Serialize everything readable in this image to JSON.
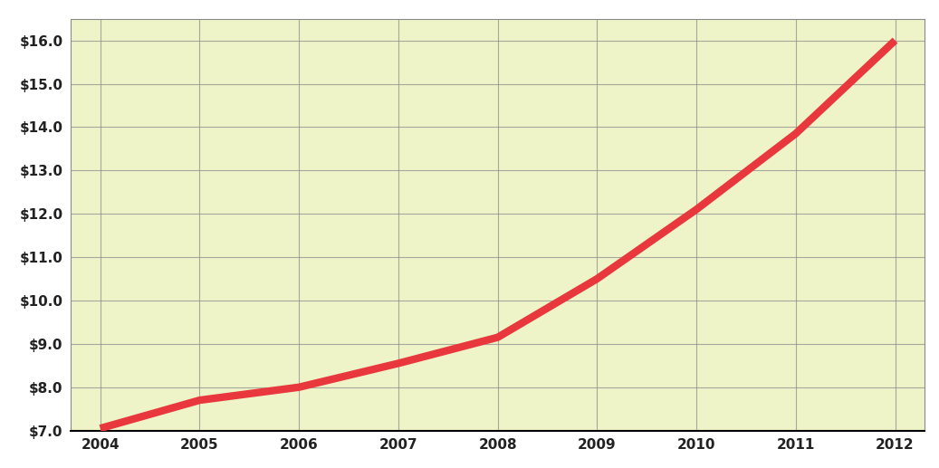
{
  "chart_data": {
    "type": "line",
    "x": [
      2004,
      2005,
      2006,
      2007,
      2008,
      2009,
      2010,
      2011,
      2012
    ],
    "values": [
      7.05,
      7.7,
      8.0,
      8.55,
      9.15,
      10.5,
      12.1,
      13.85,
      16.0
    ],
    "color": "#e8383d",
    "xlim": [
      2003.7,
      2012.3
    ],
    "xticks": [
      2004,
      2005,
      2006,
      2007,
      2008,
      2009,
      2010,
      2011,
      2012
    ],
    "ylim": [
      7.0,
      16.5
    ],
    "yticks": [
      {
        "value": 7.0,
        "label": "$7.0"
      },
      {
        "value": 8.0,
        "label": "$8.0"
      },
      {
        "value": 9.0,
        "label": "$9.0"
      },
      {
        "value": 10.0,
        "label": "$10.0"
      },
      {
        "value": 11.0,
        "label": "$11.0"
      },
      {
        "value": 12.0,
        "label": "$12.0"
      },
      {
        "value": 13.0,
        "label": "$13.0"
      },
      {
        "value": 14.0,
        "label": "$14.0"
      },
      {
        "value": 15.0,
        "label": "$15.0"
      },
      {
        "value": 16.0,
        "label": "$16.0"
      }
    ],
    "grid": true
  }
}
